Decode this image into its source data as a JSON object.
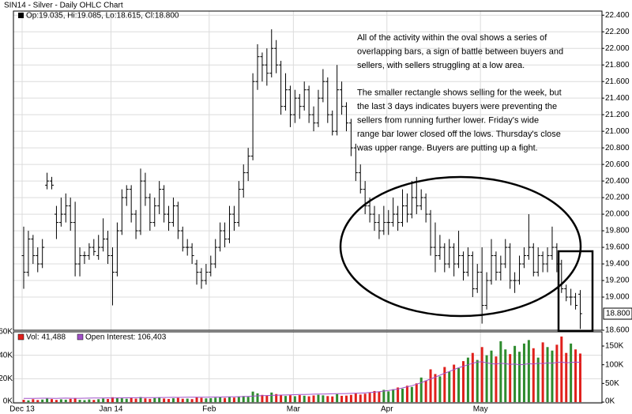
{
  "chart_data": {
    "type": "ohlc",
    "title": "SIN14 - Silver - Daily OHLC Chart",
    "ohlc_legend": "Op:19.035, Hi:19.085, Lo:18.615, Cl:18.800",
    "annotation": [
      "All of the activity within the oval shows a series of",
      "overlapping bars, a sign of battle between buyers and",
      "sellers, with sellers struggling at a low area.",
      "The smaller rectangle shows selling for the week, but",
      "the last 3 days indicates buyers were preventing the",
      "sellers from running further lower.  Friday's wide",
      "range bar lower closed off the lows.  Thursday's close",
      "was upper range.  Buyers are putting up a fight."
    ],
    "bar_color": "#000000",
    "grid": true,
    "last_close_label": "18.800",
    "open": [
      19.5,
      19.3,
      19.7,
      19.5,
      19.4,
      20.35,
      20.4,
      20.0,
      19.9,
      20.0,
      20.1,
      19.9,
      19.4,
      19.5,
      19.5,
      19.6,
      19.5,
      19.6,
      19.7,
      19.5,
      19.3,
      19.8,
      20.2,
      20.3,
      20.0,
      19.8,
      20.4,
      20.2,
      19.9,
      20.1,
      20.3,
      20.0,
      19.9,
      20.1,
      19.8,
      19.6,
      19.6,
      19.4,
      19.3,
      19.2,
      19.3,
      19.4,
      19.6,
      19.8,
      19.7,
      20.0,
      19.9,
      20.3,
      20.5,
      20.7,
      21.6,
      21.9,
      21.8,
      21.7,
      22.0,
      21.8,
      21.3,
      21.5,
      21.2,
      21.4,
      21.3,
      21.5,
      21.2,
      21.1,
      21.4,
      21.6,
      21.2,
      21.0,
      21.5,
      21.3,
      21.1,
      20.8,
      20.5,
      20.3,
      20.1,
      20.0,
      19.9,
      19.8,
      19.9,
      19.9,
      20.0,
      19.9,
      20.1,
      20.0,
      20.2,
      20.1,
      20.2,
      20.0,
      19.6,
      19.5,
      19.6,
      19.4,
      19.6,
      19.4,
      19.5,
      19.3,
      19.5,
      19.1,
      19.3,
      18.9,
      19.2,
      19.5,
      19.3,
      19.4,
      19.6,
      19.2,
      19.2,
      19.4,
      19.5,
      19.6,
      19.3,
      19.5,
      19.4,
      19.5,
      19.6,
      19.4,
      19.1,
      19.0,
      19.0,
      19.035
    ],
    "high": [
      19.85,
      19.8,
      19.75,
      19.6,
      19.7,
      20.5,
      20.45,
      20.1,
      20.2,
      20.25,
      20.2,
      20.15,
      19.6,
      19.55,
      19.65,
      19.7,
      19.75,
      19.95,
      19.8,
      19.6,
      19.9,
      20.3,
      20.35,
      20.35,
      20.05,
      20.55,
      20.5,
      20.25,
      20.2,
      20.4,
      20.35,
      20.1,
      20.2,
      20.15,
      19.85,
      19.7,
      19.65,
      19.45,
      19.35,
      19.4,
      19.5,
      19.7,
      19.9,
      19.9,
      20.1,
      20.1,
      20.4,
      20.6,
      20.8,
      21.7,
      22.05,
      21.95,
      22.0,
      22.23,
      22.1,
      21.85,
      21.7,
      21.55,
      21.5,
      21.45,
      21.6,
      21.55,
      21.3,
      21.5,
      21.75,
      21.65,
      21.25,
      21.8,
      21.6,
      21.35,
      21.15,
      20.85,
      20.6,
      20.4,
      20.2,
      20.1,
      20.0,
      20.1,
      20.05,
      20.2,
      20.1,
      20.3,
      20.25,
      20.4,
      20.45,
      20.3,
      20.25,
      20.05,
      19.9,
      19.75,
      19.65,
      19.7,
      19.65,
      19.8,
      19.55,
      19.6,
      19.55,
      19.4,
      19.6,
      19.3,
      19.7,
      19.55,
      19.5,
      19.7,
      19.65,
      19.3,
      19.5,
      19.6,
      20.0,
      19.65,
      19.6,
      19.55,
      19.6,
      19.85,
      19.65,
      19.45,
      19.15,
      19.1,
      19.05,
      19.085
    ],
    "low": [
      19.1,
      19.25,
      19.4,
      19.3,
      19.35,
      20.3,
      20.3,
      19.7,
      19.85,
      19.9,
      19.8,
      19.25,
      19.25,
      19.4,
      19.45,
      19.5,
      19.45,
      19.55,
      19.4,
      18.9,
      19.25,
      19.75,
      20.1,
      19.9,
      19.7,
      19.75,
      20.1,
      19.8,
      19.85,
      20.0,
      19.9,
      19.8,
      19.85,
      19.7,
      19.55,
      19.5,
      19.4,
      19.15,
      19.1,
      19.15,
      19.25,
      19.35,
      19.55,
      19.6,
      19.65,
      19.8,
      19.85,
      20.2,
      20.4,
      20.65,
      21.5,
      21.6,
      21.55,
      21.65,
      21.7,
      21.2,
      21.25,
      21.05,
      21.1,
      21.15,
      21.25,
      21.1,
      21.0,
      21.05,
      21.35,
      21.1,
      20.95,
      20.95,
      21.2,
      21.0,
      20.7,
      20.4,
      20.25,
      20.0,
      19.9,
      19.8,
      19.7,
      19.75,
      19.75,
      19.85,
      19.8,
      19.85,
      19.9,
      19.95,
      20.0,
      20.05,
      19.9,
      19.5,
      19.3,
      19.45,
      19.3,
      19.35,
      19.25,
      19.35,
      19.2,
      19.25,
      19.0,
      19.05,
      18.68,
      18.85,
      19.15,
      19.2,
      19.2,
      19.35,
      19.1,
      19.05,
      19.15,
      19.35,
      19.45,
      19.25,
      19.25,
      19.3,
      19.3,
      19.45,
      19.3,
      19.05,
      18.95,
      18.9,
      18.85,
      18.615
    ],
    "close": [
      19.3,
      19.7,
      19.5,
      19.4,
      19.6,
      20.4,
      20.35,
      19.9,
      20.0,
      20.1,
      19.9,
      19.4,
      19.5,
      19.5,
      19.6,
      19.55,
      19.6,
      19.7,
      19.5,
      19.3,
      19.8,
      20.2,
      20.3,
      20.0,
      19.8,
      20.4,
      20.2,
      19.9,
      20.1,
      20.3,
      20.0,
      19.9,
      20.1,
      19.8,
      19.6,
      19.6,
      19.5,
      19.3,
      19.2,
      19.3,
      19.4,
      19.6,
      19.8,
      19.7,
      20.0,
      19.9,
      20.3,
      20.5,
      20.7,
      21.6,
      21.9,
      21.8,
      21.7,
      22.0,
      21.8,
      21.3,
      21.5,
      21.2,
      21.4,
      21.3,
      21.5,
      21.2,
      21.1,
      21.4,
      21.6,
      21.2,
      21.0,
      21.5,
      21.3,
      21.1,
      20.8,
      20.5,
      20.3,
      20.1,
      20.0,
      19.9,
      19.8,
      19.9,
      19.9,
      20.0,
      19.9,
      20.1,
      20.0,
      20.2,
      20.1,
      20.2,
      20.0,
      19.6,
      19.5,
      19.6,
      19.4,
      19.6,
      19.4,
      19.5,
      19.3,
      19.5,
      19.1,
      19.3,
      18.9,
      19.2,
      19.5,
      19.3,
      19.4,
      19.6,
      19.2,
      19.2,
      19.4,
      19.5,
      19.6,
      19.3,
      19.5,
      19.4,
      19.5,
      19.6,
      19.4,
      19.1,
      19.0,
      19.0,
      18.9,
      18.8
    ],
    "ylim": [
      18.6,
      22.45
    ],
    "yticks": [
      {
        "value": 18.6,
        "label": "18.600"
      },
      {
        "value": 19.0,
        "label": "19.000"
      },
      {
        "value": 19.2,
        "label": "19.200"
      },
      {
        "value": 19.4,
        "label": "19.400"
      },
      {
        "value": 19.6,
        "label": "19.600"
      },
      {
        "value": 19.8,
        "label": "19.800"
      },
      {
        "value": 20.0,
        "label": "20.000"
      },
      {
        "value": 20.2,
        "label": "20.200"
      },
      {
        "value": 20.4,
        "label": "20.400"
      },
      {
        "value": 20.6,
        "label": "20.600"
      },
      {
        "value": 20.8,
        "label": "20.800"
      },
      {
        "value": 21.0,
        "label": "21.000"
      },
      {
        "value": 21.2,
        "label": "21.200"
      },
      {
        "value": 21.4,
        "label": "21.400"
      },
      {
        "value": 21.6,
        "label": "21.600"
      },
      {
        "value": 21.8,
        "label": "21.800"
      },
      {
        "value": 22.0,
        "label": "22.000"
      },
      {
        "value": 22.2,
        "label": "22.200"
      },
      {
        "value": 22.4,
        "label": "22.400"
      }
    ],
    "xticks": [
      {
        "value": 0,
        "label": "Dec 13"
      },
      {
        "value": 19,
        "label": "Jan 14"
      },
      {
        "value": 40,
        "label": "Feb"
      },
      {
        "value": 58,
        "label": "Mar"
      },
      {
        "value": 78,
        "label": "Apr"
      },
      {
        "value": 98,
        "label": "May"
      }
    ],
    "volume": {
      "legend": "Vol: 41,488",
      "color": "#e0201c",
      "up_color": "#2e8b2e",
      "down_color": "#e0201c",
      "values": [
        2000,
        1500,
        2500,
        1800,
        2200,
        3000,
        2600,
        1900,
        2400,
        2100,
        2800,
        3500,
        2000,
        1700,
        2300,
        1900,
        2500,
        3100,
        2700,
        4200,
        3800,
        3300,
        2900,
        3600,
        3000,
        4400,
        3200,
        2800,
        3500,
        3900,
        3100,
        2700,
        3300,
        3600,
        2900,
        3000,
        2600,
        4100,
        3700,
        3200,
        3400,
        3800,
        4200,
        3600,
        4500,
        3900,
        4800,
        5200,
        4600,
        9000,
        7500,
        6200,
        5800,
        8200,
        6900,
        6400,
        5300,
        5900,
        5100,
        6000,
        5500,
        5000,
        5700,
        6300,
        5800,
        5200,
        4900,
        6800,
        5400,
        5600,
        6200,
        7800,
        6500,
        7200,
        8000,
        9500,
        8800,
        10500,
        9200,
        11000,
        12500,
        11500,
        14000,
        13000,
        16000,
        21000,
        18500,
        28000,
        24000,
        22000,
        30000,
        26000,
        32000,
        29000,
        35000,
        38000,
        42000,
        36000,
        47000,
        40000,
        44000,
        39000,
        52000,
        45000,
        41000,
        48000,
        43000,
        50000,
        53000,
        46000,
        38000,
        51000,
        47000,
        44000,
        49000,
        56000,
        42000,
        50000,
        45000,
        41488
      ],
      "ylim": [
        0,
        60000
      ],
      "yticks": [
        {
          "value": 0,
          "label": "0K"
        },
        {
          "value": 20000,
          "label": "20K"
        },
        {
          "value": 40000,
          "label": "40K"
        },
        {
          "value": 60000,
          "label": "60K"
        }
      ]
    },
    "open_interest": {
      "legend": "Open Interest: 106,403",
      "color": "#a050c8",
      "axis": "y2",
      "values": [
        10000,
        10200,
        10100,
        10400,
        10600,
        10500,
        10300,
        10200,
        10500,
        10700,
        10600,
        10400,
        10300,
        10500,
        10800,
        11000,
        10900,
        11200,
        11400,
        11300,
        11500,
        11400,
        11700,
        11900,
        11800,
        12000,
        12200,
        12100,
        12300,
        12500,
        12400,
        12600,
        12800,
        12700,
        12900,
        13100,
        13000,
        13200,
        13400,
        13300,
        13500,
        13700,
        13600,
        13900,
        14100,
        14300,
        14600,
        15000,
        15400,
        16000,
        16800,
        17300,
        17700,
        18200,
        18600,
        19000,
        19300,
        19700,
        20000,
        20400,
        20700,
        21000,
        21300,
        21500,
        21800,
        22000,
        22300,
        22500,
        22800,
        23000,
        23400,
        23800,
        24300,
        25000,
        25800,
        26700,
        28000,
        29500,
        31000,
        33000,
        35000,
        38000,
        41000,
        44000,
        48000,
        52000,
        57000,
        62000,
        67000,
        72000,
        77000,
        82000,
        87000,
        92000,
        96000,
        100000,
        104000,
        107000,
        108000,
        105000,
        103000,
        102000,
        104000,
        103000,
        101000,
        102000,
        100000,
        101000,
        103000,
        102000,
        104000,
        103000,
        105000,
        104000,
        106000,
        107000,
        105000,
        106000,
        107000,
        106403
      ]
    },
    "y2lim": [
      0,
      188000
    ],
    "y2ticks": [
      {
        "value": 0,
        "label": "0K"
      },
      {
        "value": 50000,
        "label": "50K"
      },
      {
        "value": 100000,
        "label": "100K"
      },
      {
        "value": 150000,
        "label": "150K"
      }
    ]
  }
}
